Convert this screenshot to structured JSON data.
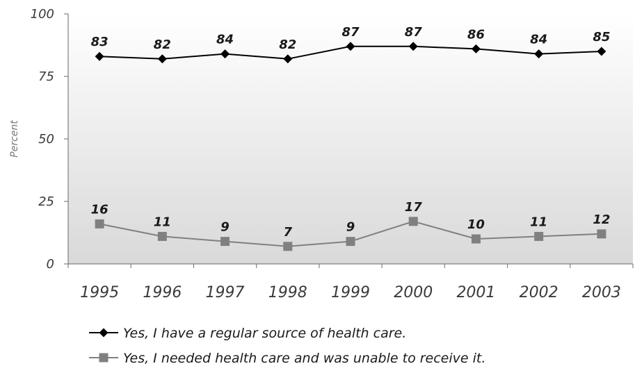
{
  "chart_data": {
    "type": "line",
    "title": "",
    "xlabel": "",
    "ylabel": "Percent",
    "ylim": [
      0,
      100
    ],
    "yticks": [
      0,
      25,
      50,
      75,
      100
    ],
    "categories": [
      "1995",
      "1996",
      "1997",
      "1998",
      "1999",
      "2000",
      "2001",
      "2002",
      "2003"
    ],
    "series": [
      {
        "name": "Yes, I have a regular source of health care.",
        "values": [
          83,
          82,
          84,
          82,
          87,
          87,
          86,
          84,
          85
        ],
        "color": "#000000",
        "marker": "diamond"
      },
      {
        "name": "Yes, I needed health care and was unable to receive it.",
        "values": [
          16,
          11,
          9,
          7,
          9,
          17,
          10,
          11,
          12
        ],
        "color": "#808080",
        "marker": "square"
      }
    ],
    "grid": false,
    "legend_position": "bottom"
  }
}
